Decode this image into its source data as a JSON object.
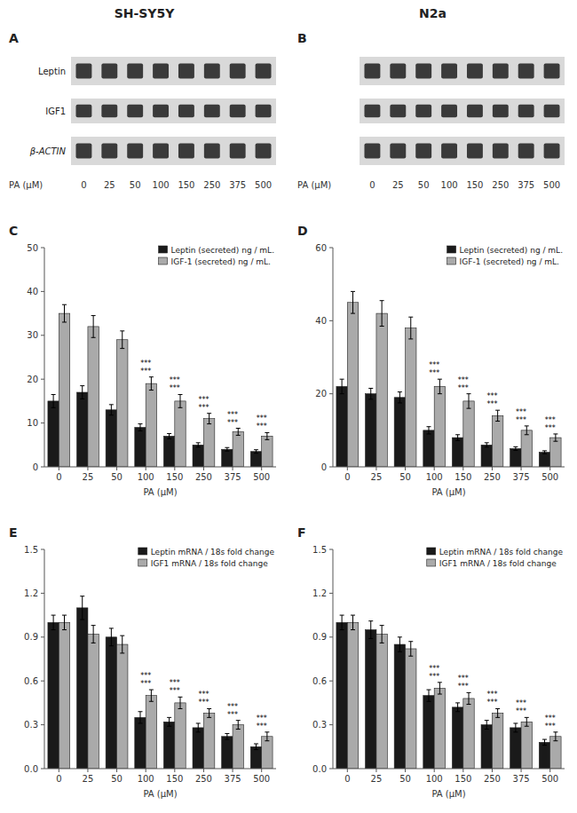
{
  "chart_data": [
    {
      "type": "blot",
      "title": "SH-SY5Y",
      "subtitle": "A",
      "categories": [
        "0",
        "25",
        "50",
        "100",
        "150",
        "250",
        "375",
        "500"
      ],
      "xlabel": "PA (μM)",
      "annotations": [
        "Leptin",
        "IGF1",
        "β-ACTIN"
      ]
    },
    {
      "type": "blot",
      "title": "N2a",
      "subtitle": "B",
      "categories": [
        "0",
        "25",
        "50",
        "100",
        "150",
        "250",
        "375",
        "500"
      ],
      "xlabel": "PA (μM)"
    },
    {
      "type": "bar",
      "title": "C",
      "categories": [
        "0",
        "25",
        "50",
        "100",
        "150",
        "250",
        "375",
        "500"
      ],
      "xlabel": "PA (μM)",
      "series": [
        {
          "name": "Leptin (secreted) ng / mL.",
          "color": "#1a1a1a",
          "values": [
            15,
            17,
            13,
            9,
            7,
            5,
            4,
            3.5
          ],
          "errors": [
            1.5,
            1.5,
            1.2,
            0.8,
            0.6,
            0.5,
            0.4,
            0.4
          ]
        },
        {
          "name": "IGF-1 (secreted) ng / mL.",
          "color": "#aaaaaa",
          "values": [
            35,
            32,
            29,
            19,
            15,
            11,
            8,
            7
          ],
          "errors": [
            2.0,
            2.5,
            2.0,
            1.5,
            1.5,
            1.2,
            0.8,
            0.8
          ]
        }
      ],
      "annotations": [
        null,
        null,
        null,
        [
          "***",
          "***"
        ],
        [
          "***",
          "***"
        ],
        [
          "***",
          "***"
        ],
        [
          "***",
          "***"
        ],
        [
          "***",
          "***"
        ]
      ],
      "ylim": [
        0,
        50
      ],
      "yticks": [
        0,
        10,
        20,
        30,
        40,
        50
      ],
      "legend": "upper right"
    },
    {
      "type": "bar",
      "title": "D",
      "categories": [
        "0",
        "25",
        "50",
        "100",
        "150",
        "250",
        "375",
        "500"
      ],
      "xlabel": "PA (μM)",
      "series": [
        {
          "name": "Leptin (secreted) ng / mL.",
          "color": "#1a1a1a",
          "values": [
            22,
            20,
            19,
            10,
            8,
            6,
            5,
            4
          ],
          "errors": [
            2.0,
            1.5,
            1.5,
            1.0,
            0.8,
            0.6,
            0.5,
            0.4
          ]
        },
        {
          "name": "IGF-1 (secreted) ng / mL.",
          "color": "#aaaaaa",
          "values": [
            45,
            42,
            38,
            22,
            18,
            14,
            10,
            8
          ],
          "errors": [
            3.0,
            3.5,
            3.0,
            2.0,
            2.0,
            1.5,
            1.2,
            1.0
          ]
        }
      ],
      "annotations": [
        null,
        null,
        null,
        [
          "***",
          "***"
        ],
        [
          "***",
          "***"
        ],
        [
          "***",
          "***"
        ],
        [
          "***",
          "***"
        ],
        [
          "***",
          "***"
        ]
      ],
      "ylim": [
        0,
        60
      ],
      "yticks": [
        0,
        20,
        40,
        60
      ],
      "legend": "upper right"
    },
    {
      "type": "bar",
      "title": "E",
      "categories": [
        "0",
        "25",
        "50",
        "100",
        "150",
        "250",
        "375",
        "500"
      ],
      "xlabel": "PA (μM)",
      "series": [
        {
          "name": "Leptin mRNA / 18s  fold change",
          "color": "#1a1a1a",
          "values": [
            1.0,
            1.1,
            0.9,
            0.35,
            0.32,
            0.28,
            0.22,
            0.15
          ],
          "errors": [
            0.05,
            0.08,
            0.06,
            0.04,
            0.03,
            0.03,
            0.02,
            0.02
          ]
        },
        {
          "name": "IGF1 mRNA / 18s  fold change",
          "color": "#aaaaaa",
          "values": [
            1.0,
            0.92,
            0.85,
            0.5,
            0.45,
            0.38,
            0.3,
            0.22
          ],
          "errors": [
            0.05,
            0.06,
            0.06,
            0.04,
            0.04,
            0.03,
            0.03,
            0.03
          ]
        }
      ],
      "annotations": [
        null,
        null,
        null,
        [
          "***",
          "***"
        ],
        [
          "***",
          "***"
        ],
        [
          "***",
          "***"
        ],
        [
          "***",
          "***"
        ],
        [
          "***",
          "***"
        ]
      ],
      "ylim": [
        0,
        1.5
      ],
      "yticks": [
        {
          "value": 0,
          "label": "0.0"
        },
        0.3,
        0.6,
        0.9,
        1.2,
        1.5
      ],
      "legend": "upper right"
    },
    {
      "type": "bar",
      "title": "F",
      "categories": [
        "0",
        "25",
        "50",
        "100",
        "150",
        "250",
        "375",
        "500"
      ],
      "xlabel": "PA (μM)",
      "series": [
        {
          "name": "Leptin mRNA / 18s  fold change",
          "color": "#1a1a1a",
          "values": [
            1.0,
            0.95,
            0.85,
            0.5,
            0.42,
            0.3,
            0.28,
            0.18
          ],
          "errors": [
            0.05,
            0.06,
            0.05,
            0.04,
            0.03,
            0.03,
            0.03,
            0.02
          ]
        },
        {
          "name": "IGF1 mRNA / 18s  fold change",
          "color": "#aaaaaa",
          "values": [
            1.0,
            0.92,
            0.82,
            0.55,
            0.48,
            0.38,
            0.32,
            0.22
          ],
          "errors": [
            0.05,
            0.06,
            0.05,
            0.04,
            0.04,
            0.03,
            0.03,
            0.03
          ]
        }
      ],
      "annotations": [
        null,
        null,
        null,
        [
          "***",
          "***"
        ],
        [
          "***",
          "***"
        ],
        [
          "***",
          "***"
        ],
        [
          "***",
          "***"
        ],
        [
          "***",
          "***"
        ]
      ],
      "ylim": [
        0,
        1.5
      ],
      "yticks": [
        {
          "value": 0,
          "label": "0.0"
        },
        0.3,
        0.6,
        0.9,
        1.2,
        1.5
      ],
      "legend": "upper right"
    }
  ]
}
